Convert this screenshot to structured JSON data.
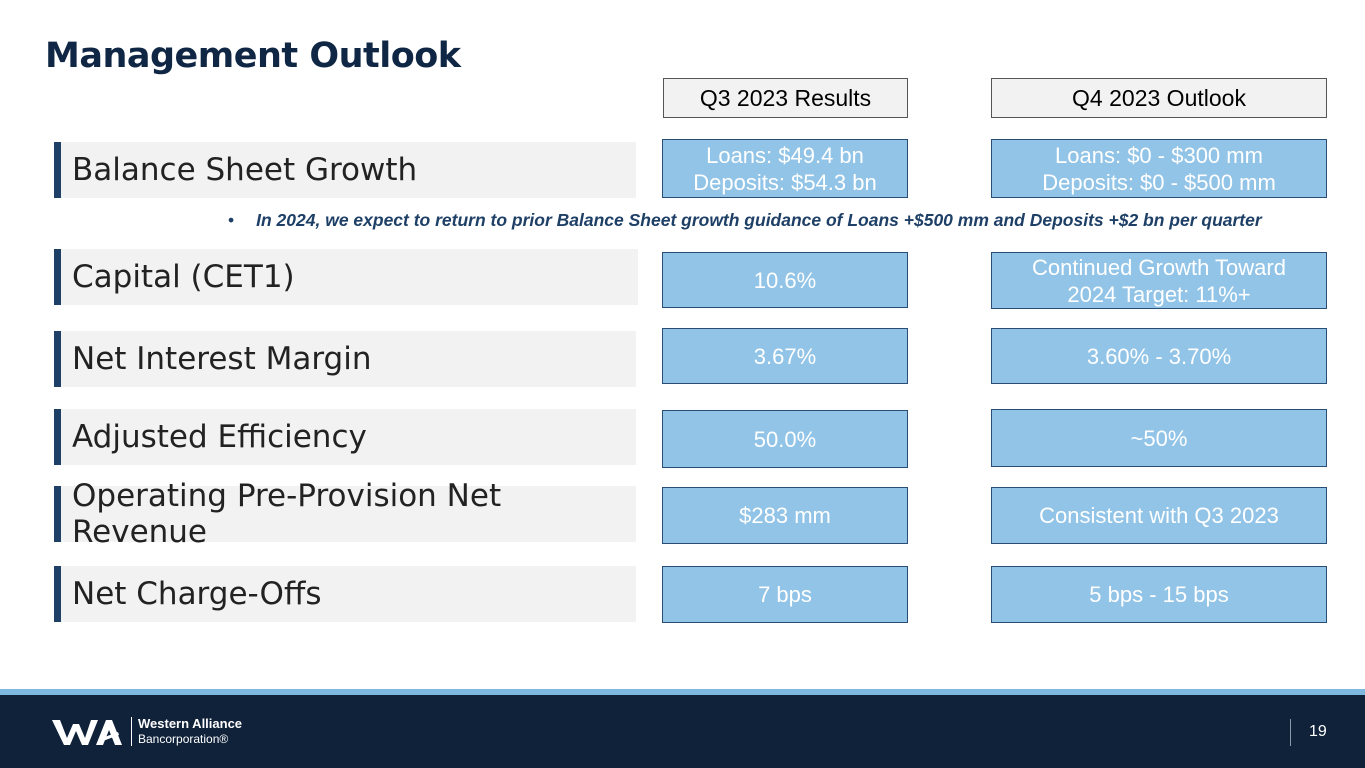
{
  "title": "Management Outlook",
  "columns": {
    "q3": "Q3 2023 Results",
    "q4": "Q4 2023 Outlook"
  },
  "rows": [
    {
      "label": "Balance Sheet Growth",
      "q3_line1": "Loans: $49.4 bn",
      "q3_line2": "Deposits: $54.3 bn",
      "q4_line1": "Loans: $0 - $300 mm",
      "q4_line2": "Deposits: $0 - $500 mm"
    },
    {
      "label": "Capital (CET1)",
      "q3": "10.6%",
      "q4_line1": "Continued Growth Toward",
      "q4_line2": "2024 Target: 11%+"
    },
    {
      "label": "Net Interest Margin",
      "q3": "3.67%",
      "q4": "3.60% - 3.70%"
    },
    {
      "label": "Adjusted Efficiency",
      "q3": "50.0%",
      "q4": "~50%"
    },
    {
      "label": "Operating Pre-Provision Net Revenue",
      "q3": "$283 mm",
      "q4": "Consistent with Q3 2023"
    },
    {
      "label": "Net Charge-Offs",
      "q3": "7 bps",
      "q4": "5 bps - 15 bps"
    }
  ],
  "note": {
    "bullet": "•",
    "text": "In 2024, we expect to return to prior Balance Sheet growth guidance of Loans +$500 mm and Deposits +$2 bn per quarter"
  },
  "footer": {
    "company_name": "Western Alliance",
    "company_sub": "Bancorporation®",
    "logo_icon": "western-alliance-logo",
    "page_number": "19"
  },
  "colors": {
    "navy": "#0f2239",
    "accent_bar": "#1e3f66",
    "cell_fill": "#92c4e7",
    "footer_stripe": "#7fb8de"
  }
}
